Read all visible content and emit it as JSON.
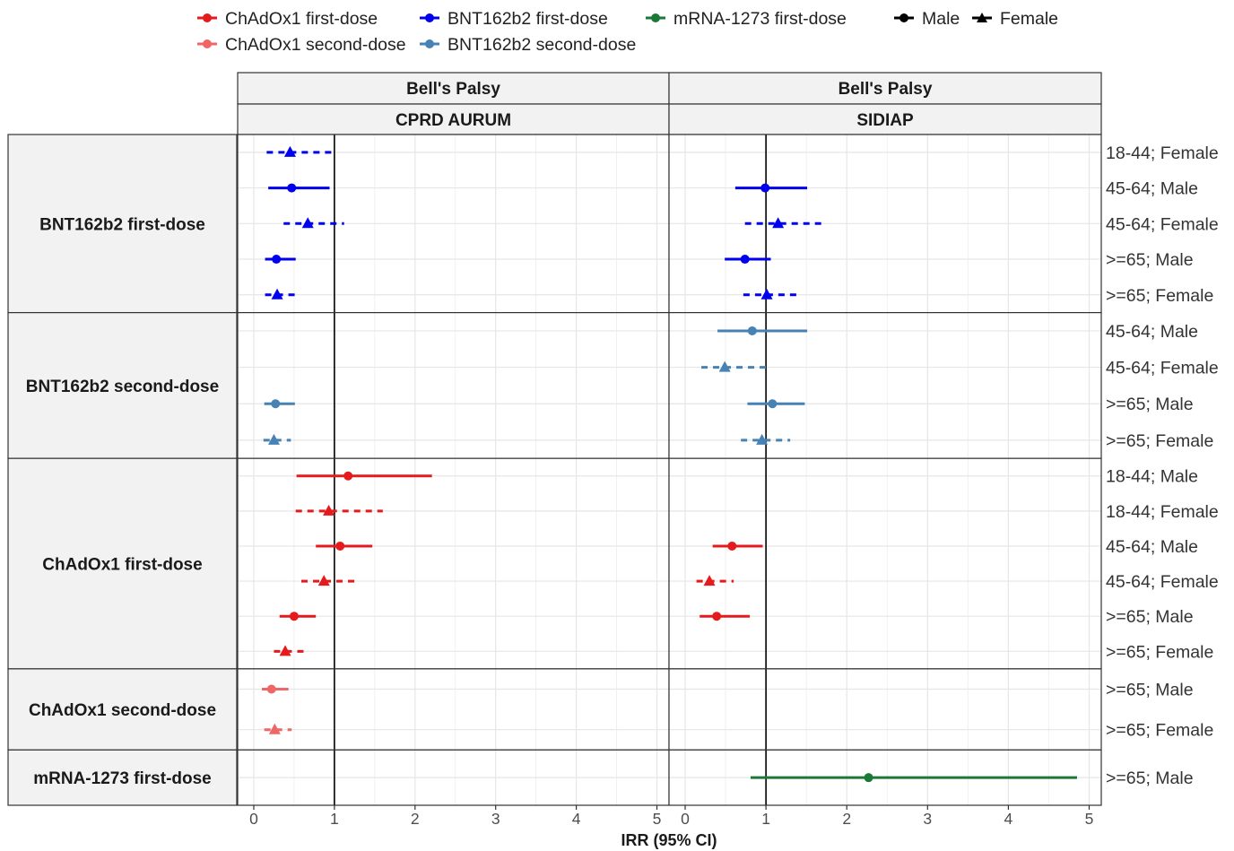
{
  "chart_data": {
    "type": "forest",
    "xlabel": "IRR (95% CI)",
    "xlim": [
      -0.2,
      5.15
    ],
    "x_ticks": [
      "0",
      "1",
      "2",
      "3",
      "4",
      "5"
    ],
    "reference_line": 1,
    "grid": true,
    "legend_position": "top",
    "legend": {
      "entries": [
        {
          "label": "ChAdOx1 first-dose",
          "color": "#e41a1c"
        },
        {
          "label": "BNT162b2 first-dose",
          "color": "#0000ee"
        },
        {
          "label": "mRNA-1273 first-dose",
          "color": "#1b7837"
        },
        {
          "label": "ChAdOx1 second-dose",
          "color": "#ef6666"
        },
        {
          "label": "BNT162b2 second-dose",
          "color": "#4682b4"
        }
      ],
      "shape_labels": {
        "male": "Male",
        "female": "Female"
      }
    },
    "facet_top": "Bell's Palsy",
    "databases": [
      "CPRD AURUM",
      "SIDIAP"
    ],
    "groups": [
      {
        "label": "BNT162b2 first-dose",
        "color": "#0000ee",
        "rows": [
          {
            "label": "18-44; Female",
            "sex": "female",
            "cprd": [
              0.45,
              0.16,
              0.98
            ],
            "sidiap": null
          },
          {
            "label": "45-64; Male",
            "sex": "male",
            "cprd": [
              0.47,
              0.18,
              0.94
            ],
            "sidiap": [
              0.99,
              0.62,
              1.51
            ]
          },
          {
            "label": "45-64; Female",
            "sex": "female",
            "cprd": [
              0.67,
              0.37,
              1.12
            ],
            "sidiap": [
              1.15,
              0.74,
              1.74
            ]
          },
          {
            "label": ">=65; Male",
            "sex": "male",
            "cprd": [
              0.28,
              0.14,
              0.52
            ],
            "sidiap": [
              0.74,
              0.49,
              1.06
            ]
          },
          {
            "label": ">=65; Female",
            "sex": "female",
            "cprd": [
              0.29,
              0.14,
              0.51
            ],
            "sidiap": [
              1.01,
              0.72,
              1.38
            ]
          }
        ]
      },
      {
        "label": "BNT162b2 second-dose",
        "color": "#4682b4",
        "rows": [
          {
            "label": "45-64; Male",
            "sex": "male",
            "cprd": null,
            "sidiap": [
              0.83,
              0.4,
              1.51
            ]
          },
          {
            "label": "45-64; Female",
            "sex": "female",
            "cprd": null,
            "sidiap": [
              0.49,
              0.2,
              1.04
            ]
          },
          {
            "label": ">=65; Male",
            "sex": "male",
            "cprd": [
              0.27,
              0.13,
              0.51
            ],
            "sidiap": [
              1.08,
              0.77,
              1.48
            ]
          },
          {
            "label": ">=65; Female",
            "sex": "female",
            "cprd": [
              0.25,
              0.12,
              0.46
            ],
            "sidiap": [
              0.95,
              0.69,
              1.3
            ]
          }
        ]
      },
      {
        "label": "ChAdOx1 first-dose",
        "color": "#e41a1c",
        "rows": [
          {
            "label": "18-44; Male",
            "sex": "male",
            "cprd": [
              1.17,
              0.53,
              2.21
            ],
            "sidiap": null
          },
          {
            "label": "18-44; Female",
            "sex": "female",
            "cprd": [
              0.93,
              0.52,
              1.6
            ],
            "sidiap": null
          },
          {
            "label": "45-64; Male",
            "sex": "male",
            "cprd": [
              1.07,
              0.77,
              1.47
            ],
            "sidiap": [
              0.58,
              0.34,
              0.96
            ]
          },
          {
            "label": "45-64; Female",
            "sex": "female",
            "cprd": [
              0.87,
              0.59,
              1.25
            ],
            "sidiap": [
              0.3,
              0.14,
              0.6
            ]
          },
          {
            "label": ">=65; Male",
            "sex": "male",
            "cprd": [
              0.5,
              0.32,
              0.77
            ],
            "sidiap": [
              0.39,
              0.18,
              0.8
            ]
          },
          {
            "label": ">=65; Female",
            "sex": "female",
            "cprd": [
              0.39,
              0.25,
              0.62
            ],
            "sidiap": null
          }
        ]
      },
      {
        "label": "ChAdOx1 second-dose",
        "color": "#ef6666",
        "rows": [
          {
            "label": ">=65; Male",
            "sex": "male",
            "cprd": [
              0.22,
              0.1,
              0.43
            ],
            "sidiap": null
          },
          {
            "label": ">=65; Female",
            "sex": "female",
            "cprd": [
              0.26,
              0.13,
              0.47
            ],
            "sidiap": null
          }
        ]
      },
      {
        "label": "mRNA-1273 first-dose",
        "color": "#1b7837",
        "rows": [
          {
            "label": ">=65; Male",
            "sex": "male",
            "cprd": null,
            "sidiap": [
              2.27,
              0.81,
              4.85
            ]
          }
        ]
      }
    ]
  }
}
